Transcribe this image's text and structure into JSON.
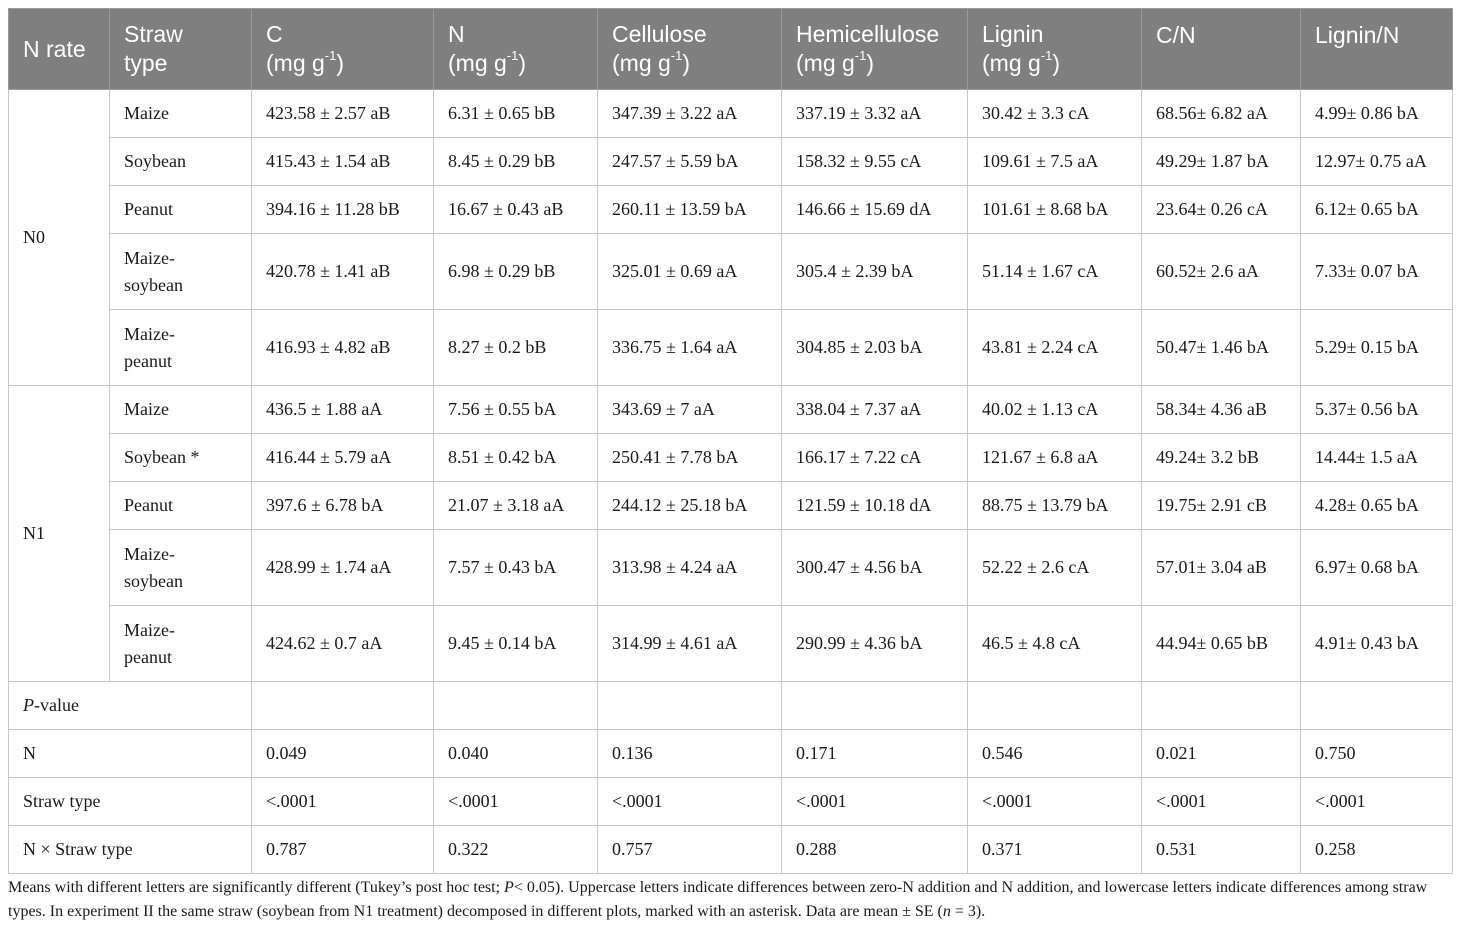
{
  "headers": {
    "n_rate": "N rate",
    "straw_type": [
      "Straw",
      "type"
    ],
    "c": [
      "C",
      "(mg g",
      "-1",
      ")"
    ],
    "n": [
      "N",
      "(mg g",
      "-1",
      ")"
    ],
    "cellulose": [
      "Cellulose",
      "(mg g",
      "-1",
      ")"
    ],
    "hemicellulose": [
      "Hemicellulose",
      "(mg g",
      "-1",
      ")"
    ],
    "lignin": [
      "Lignin",
      "(mg g",
      "-1",
      ")"
    ],
    "cn": "C/N",
    "lignin_n": "Lignin/N"
  },
  "groups": [
    {
      "label": "N0",
      "rows": [
        {
          "straw": [
            "Maize"
          ],
          "vals": [
            "423.58 ± 2.57 aB",
            "6.31 ± 0.65 bB",
            "347.39 ± 3.22 aA",
            "337.19 ± 3.32 aA",
            "30.42 ± 3.3 cA",
            "68.56± 6.82 aA",
            "4.99± 0.86 bA"
          ]
        },
        {
          "straw": [
            "Soybean"
          ],
          "vals": [
            "415.43 ± 1.54 aB",
            "8.45 ± 0.29 bB",
            "247.57 ± 5.59 bA",
            "158.32 ± 9.55 cA",
            "109.61 ± 7.5 aA",
            "49.29± 1.87 bA",
            "12.97± 0.75 aA"
          ]
        },
        {
          "straw": [
            "Peanut"
          ],
          "vals": [
            "394.16 ± 11.28 bB",
            "16.67 ± 0.43 aB",
            "260.11 ± 13.59 bA",
            "146.66 ± 15.69 dA",
            "101.61 ± 8.68 bA",
            "23.64± 0.26 cA",
            "6.12± 0.65 bA"
          ]
        },
        {
          "straw": [
            "Maize-",
            "soybean"
          ],
          "vals": [
            "420.78 ± 1.41 aB",
            "6.98 ± 0.29 bB",
            "325.01 ± 0.69 aA",
            "305.4 ± 2.39 bA",
            "51.14 ± 1.67 cA",
            "60.52± 2.6 aA",
            "7.33± 0.07 bA"
          ]
        },
        {
          "straw": [
            "Maize-",
            "peanut"
          ],
          "vals": [
            "416.93 ± 4.82 aB",
            "8.27 ± 0.2 bB",
            "336.75 ± 1.64 aA",
            "304.85 ± 2.03 bA",
            "43.81 ± 2.24 cA",
            "50.47± 1.46 bA",
            "5.29± 0.15 bA"
          ]
        }
      ]
    },
    {
      "label": "N1",
      "rows": [
        {
          "straw": [
            "Maize"
          ],
          "vals": [
            "436.5 ± 1.88 aA",
            "7.56 ± 0.55 bA",
            "343.69 ± 7 aA",
            "338.04 ± 7.37 aA",
            "40.02 ± 1.13 cA",
            "58.34± 4.36 aB",
            "5.37± 0.56 bA"
          ]
        },
        {
          "straw": [
            "Soybean *"
          ],
          "vals": [
            "416.44 ± 5.79 aA",
            "8.51 ± 0.42 bA",
            "250.41 ± 7.78 bA",
            "166.17 ± 7.22 cA",
            "121.67 ± 6.8 aA",
            "49.24± 3.2 bB",
            "14.44± 1.5 aA"
          ]
        },
        {
          "straw": [
            "Peanut"
          ],
          "vals": [
            "397.6 ± 6.78 bA",
            "21.07 ± 3.18 aA",
            "244.12 ± 25.18 bA",
            "121.59 ± 10.18 dA",
            "88.75 ± 13.79 bA",
            "19.75± 2.91 cB",
            "4.28± 0.65 bA"
          ]
        },
        {
          "straw": [
            "Maize-",
            "soybean"
          ],
          "vals": [
            "428.99 ± 1.74 aA",
            "7.57 ± 0.43 bA",
            "313.98 ± 4.24 aA",
            "300.47 ± 4.56 bA",
            "52.22 ± 2.6 cA",
            "57.01± 3.04 aB",
            "6.97± 0.68 bA"
          ]
        },
        {
          "straw": [
            "Maize-",
            "peanut"
          ],
          "vals": [
            "424.62 ± 0.7 aA",
            "9.45 ± 0.14 bA",
            "314.99 ± 4.61 aA",
            "290.99 ± 4.36 bA",
            "46.5 ± 4.8 cA",
            "44.94± 0.65 bB",
            "4.91± 0.43 bA"
          ]
        }
      ]
    }
  ],
  "pvalue": {
    "italic": "P",
    "rest": "-value",
    "rows": [
      {
        "label": "N",
        "vals": [
          "0.049",
          "0.040",
          "0.136",
          "0.171",
          "0.546",
          "0.021",
          "0.750"
        ]
      },
      {
        "label": "Straw type",
        "vals": [
          "<.0001",
          "<.0001",
          "<.0001",
          "<.0001",
          "<.0001",
          "<.0001",
          "<.0001"
        ]
      },
      {
        "label": "N × Straw type",
        "vals": [
          "0.787",
          "0.322",
          "0.757",
          "0.288",
          "0.371",
          "0.531",
          "0.258"
        ]
      }
    ]
  },
  "footnote": {
    "part1": "Means with different letters are significantly different (Tukey’s post hoc test; ",
    "p_italic": "P",
    "part2": "< 0.05). Uppercase letters indicate differences between zero-N addition and N addition, and lowercase letters indicate differences among straw types. In experiment II the same straw (soybean from N1 treatment) decomposed in different plots, marked with an asterisk. Data are mean ± SE (",
    "n_italic": "n",
    "part3": " = 3)."
  }
}
